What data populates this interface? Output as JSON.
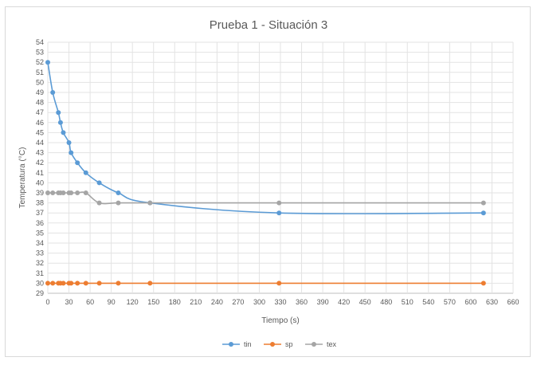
{
  "chart_data": {
    "type": "line",
    "title": "Prueba 1 - Situación 3",
    "xlabel": "Tiempo (s)",
    "ylabel": "Temperatura (°C)",
    "xlim": [
      0,
      660
    ],
    "ylim": [
      29,
      54
    ],
    "xticks": [
      0,
      30,
      60,
      90,
      120,
      150,
      180,
      210,
      240,
      270,
      300,
      330,
      360,
      390,
      420,
      450,
      480,
      510,
      540,
      570,
      600,
      630,
      660
    ],
    "yticks": [
      29,
      30,
      31,
      32,
      33,
      34,
      35,
      36,
      37,
      38,
      39,
      40,
      41,
      42,
      43,
      44,
      45,
      46,
      47,
      48,
      49,
      50,
      51,
      52,
      53,
      54
    ],
    "grid": true,
    "legend_position": "bottom",
    "x": [
      0,
      7,
      15,
      18,
      22,
      30,
      33,
      42,
      54,
      73,
      100,
      145,
      328,
      618
    ],
    "series": [
      {
        "name": "tin",
        "color": "#5b9bd5",
        "values": [
          52,
          49,
          47,
          46,
          45,
          44,
          43,
          42,
          41,
          40,
          39,
          38,
          37,
          37
        ]
      },
      {
        "name": "sp",
        "color": "#ed7d31",
        "values": [
          30,
          30,
          30,
          30,
          30,
          30,
          30,
          30,
          30,
          30,
          30,
          30,
          30,
          30
        ]
      },
      {
        "name": "tex",
        "color": "#a5a5a5",
        "values": [
          39,
          39,
          39,
          39,
          39,
          39,
          39,
          39,
          39,
          38,
          38,
          38,
          38,
          38
        ]
      }
    ]
  }
}
